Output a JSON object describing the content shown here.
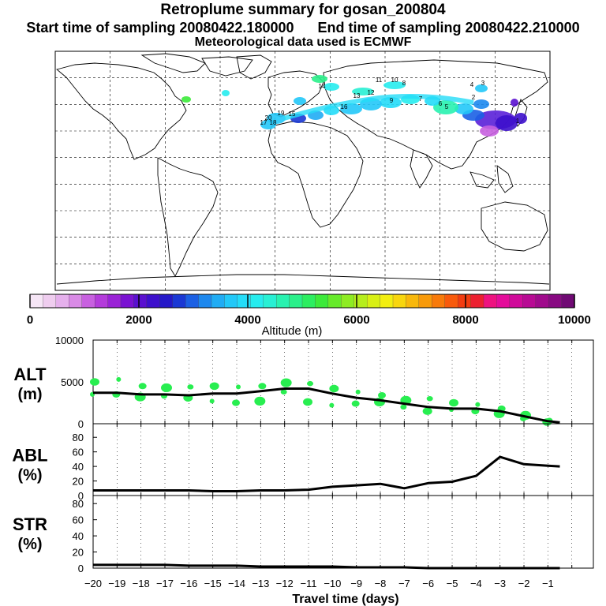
{
  "header": {
    "title": "Retroplume summary for gosan_200804",
    "start_label": "Start time of sampling 20080422.180000",
    "end_label": "End time of sampling 20080422.210000",
    "met_label": "Meteorological data used is ECMWF"
  },
  "colorbar": {
    "title": "Altitude (m)",
    "ticks": [
      0,
      2000,
      4000,
      6000,
      8000,
      10000
    ],
    "colors": [
      "#f6e6f6",
      "#efcdef",
      "#e5b0ec",
      "#d98ae6",
      "#c860e0",
      "#b43bdb",
      "#9a22d6",
      "#7a12d2",
      "#5a10d0",
      "#3d10cc",
      "#2418c8",
      "#1a38d4",
      "#1b60e4",
      "#1d88ee",
      "#20acf4",
      "#22c8f8",
      "#24dcf8",
      "#26ecee",
      "#28f0d4",
      "#28f2b0",
      "#2af08a",
      "#2cee60",
      "#3cea3a",
      "#66ea2a",
      "#8eec22",
      "#b6ee1c",
      "#d8f014",
      "#f2ee10",
      "#f8d60e",
      "#f8b80c",
      "#f89a0a",
      "#f87a0a",
      "#f85a0c",
      "#f23c10",
      "#ec2030",
      "#ee1280",
      "#e40c9a",
      "#d00a9a",
      "#b80a94",
      "#a00a8c",
      "#880a82",
      "#700a74"
    ]
  },
  "chart_data": [
    {
      "type": "line",
      "panel": "ALT",
      "ylabel": "ALT",
      "yunit": "(m)",
      "ylim": [
        0,
        10000
      ],
      "yticks": [
        0,
        5000,
        10000
      ],
      "x": [
        -20,
        -19,
        -18,
        -17,
        -16,
        -15,
        -14,
        -13,
        -12,
        -11,
        -10,
        -9,
        -8,
        -7,
        -6,
        -5,
        -4,
        -3,
        -2,
        -1,
        -0.5
      ],
      "series": [
        {
          "name": "median altitude",
          "values": [
            3700,
            3700,
            3500,
            3500,
            3400,
            3600,
            3600,
            3900,
            4200,
            4200,
            3600,
            3100,
            2800,
            2400,
            2000,
            1800,
            1800,
            1500,
            900,
            300,
            150
          ]
        }
      ],
      "clusters": [
        {
          "x": -20,
          "y": [
            3500,
            5000
          ]
        },
        {
          "x": -19,
          "y": [
            3500,
            5300
          ]
        },
        {
          "x": -18,
          "y": [
            3200,
            4500
          ]
        },
        {
          "x": -17,
          "y": [
            3300,
            4300
          ]
        },
        {
          "x": -16,
          "y": [
            3100,
            4400
          ]
        },
        {
          "x": -15,
          "y": [
            2700,
            4500
          ]
        },
        {
          "x": -14,
          "y": [
            2500,
            4400
          ]
        },
        {
          "x": -13,
          "y": [
            2700,
            4500
          ]
        },
        {
          "x": -12,
          "y": [
            3800,
            4900
          ]
        },
        {
          "x": -11,
          "y": [
            2600,
            4800
          ]
        },
        {
          "x": -10,
          "y": [
            2200,
            4200
          ]
        },
        {
          "x": -9,
          "y": [
            2400,
            3800
          ]
        },
        {
          "x": -8,
          "y": [
            2600,
            3400
          ]
        },
        {
          "x": -7,
          "y": [
            2000,
            2800
          ]
        },
        {
          "x": -6,
          "y": [
            1500,
            3000
          ]
        },
        {
          "x": -5,
          "y": [
            1700,
            2500
          ]
        },
        {
          "x": -4,
          "y": [
            1500,
            2300
          ]
        },
        {
          "x": -3,
          "y": [
            1200,
            1800
          ]
        },
        {
          "x": -2,
          "y": [
            600,
            1000
          ]
        },
        {
          "x": -1,
          "y": [
            200,
            400
          ]
        }
      ]
    },
    {
      "type": "line",
      "panel": "ABL",
      "ylabel": "ABL",
      "yunit": "(%)",
      "ylim": [
        0,
        90
      ],
      "yticks": [
        0,
        20,
        40,
        60,
        80
      ],
      "x": [
        -20,
        -19,
        -18,
        -17,
        -16,
        -15,
        -14,
        -13,
        -12,
        -11,
        -10,
        -9,
        -8,
        -7,
        -6,
        -5,
        -4,
        -3,
        -2,
        -1,
        -0.5
      ],
      "series": [
        {
          "name": "ABL fraction",
          "values": [
            7,
            7,
            7,
            7,
            7,
            6,
            6,
            7,
            7,
            8,
            12,
            14,
            16,
            10,
            17,
            19,
            27,
            53,
            43,
            41,
            40
          ]
        }
      ]
    },
    {
      "type": "line",
      "panel": "STR",
      "ylabel": "STR",
      "yunit": "(%)",
      "ylim": [
        0,
        90
      ],
      "yticks": [
        0,
        20,
        40,
        60,
        80
      ],
      "x": [
        -20,
        -19,
        -18,
        -17,
        -16,
        -15,
        -14,
        -13,
        -12,
        -11,
        -10,
        -9,
        -8,
        -7,
        -6,
        -5,
        -4,
        -3,
        -2,
        -1,
        -0.5
      ],
      "series": [
        {
          "name": "STR fraction",
          "values": [
            4,
            4,
            4,
            4,
            3,
            3,
            3,
            2,
            2,
            2,
            2,
            1,
            1,
            1,
            0,
            0,
            0,
            0,
            0,
            0,
            0
          ]
        }
      ]
    }
  ],
  "xaxis": {
    "label": "Travel time (days)",
    "ticks": [
      -20,
      -19,
      -18,
      -17,
      -16,
      -15,
      -14,
      -13,
      -12,
      -11,
      -10,
      -9,
      -8,
      -7,
      -6,
      -5,
      -4,
      -3,
      -2,
      -1,
      0
    ],
    "tick_labels": [
      "-20",
      "-19",
      "-18",
      "-17",
      "-16",
      "-15",
      "-14",
      "-13",
      "-12",
      "-11",
      "-10",
      "-9",
      "-8",
      "-7",
      "-6",
      "-5",
      "-4",
      "-3",
      "-2",
      "-1",
      ""
    ]
  },
  "map": {
    "labels": [
      "20",
      "17",
      "18",
      "19",
      "15",
      "16",
      "14",
      "13",
      "12",
      "11",
      "10",
      "9",
      "8",
      "7",
      "6",
      "5",
      "4",
      "3",
      "2",
      "1"
    ]
  }
}
